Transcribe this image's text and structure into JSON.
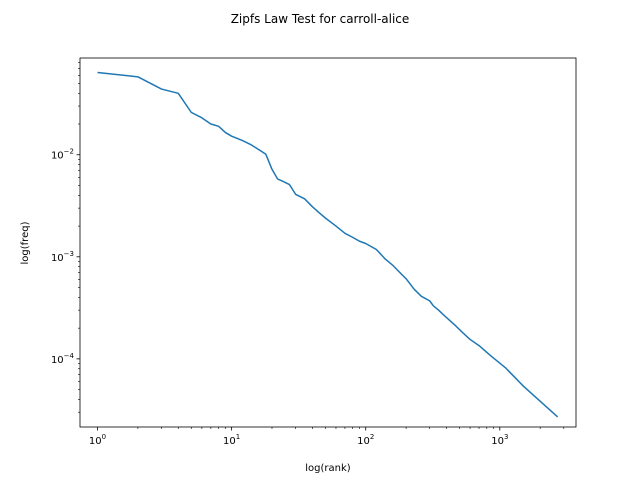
{
  "chart_data": {
    "type": "line",
    "title": "Zipfs Law Test for carroll-alice",
    "xlabel": "log(rank)",
    "ylabel": "log(freq)",
    "xscale": "log",
    "yscale": "log",
    "xlim": [
      0.74,
      3700
    ],
    "ylim": [
      2.15e-05,
      0.0887
    ],
    "x_ticks": [
      {
        "value": 1,
        "base": "10",
        "exp": "0"
      },
      {
        "value": 10,
        "base": "10",
        "exp": "1"
      },
      {
        "value": 100,
        "base": "10",
        "exp": "2"
      },
      {
        "value": 1000,
        "base": "10",
        "exp": "3"
      }
    ],
    "y_ticks": [
      {
        "value": 0.0001,
        "base": "10",
        "exp": "−4"
      },
      {
        "value": 0.001,
        "base": "10",
        "exp": "−3"
      },
      {
        "value": 0.01,
        "base": "10",
        "exp": "−2"
      }
    ],
    "grid": false,
    "legend": "none",
    "series": [
      {
        "color": "#1f77b4",
        "x": [
          1,
          2,
          3,
          4,
          5,
          6,
          7,
          8,
          9,
          10,
          12,
          14,
          16,
          18,
          20,
          22,
          24,
          27,
          30,
          35,
          40,
          45,
          50,
          60,
          70,
          80,
          90,
          100,
          120,
          140,
          160,
          180,
          200,
          230,
          260,
          300,
          320,
          350,
          380,
          420,
          470,
          530,
          600,
          700,
          850,
          1100,
          1500,
          2700
        ],
        "y": [
          0.064,
          0.058,
          0.044,
          0.04,
          0.026,
          0.023,
          0.02,
          0.019,
          0.0165,
          0.0152,
          0.0138,
          0.0125,
          0.0112,
          0.0101,
          0.0072,
          0.0058,
          0.0055,
          0.0051,
          0.0041,
          0.0037,
          0.0031,
          0.0027,
          0.0024,
          0.002,
          0.0017,
          0.00155,
          0.00142,
          0.00135,
          0.00118,
          0.00095,
          0.00082,
          0.0007,
          0.00061,
          0.00048,
          0.00041,
          0.00037,
          0.00033,
          0.0003,
          0.00027,
          0.00024,
          0.00021,
          0.00018,
          0.000155,
          0.000135,
          0.000108,
          8.2e-05,
          5.4e-05,
          2.7e-05
        ]
      }
    ]
  }
}
